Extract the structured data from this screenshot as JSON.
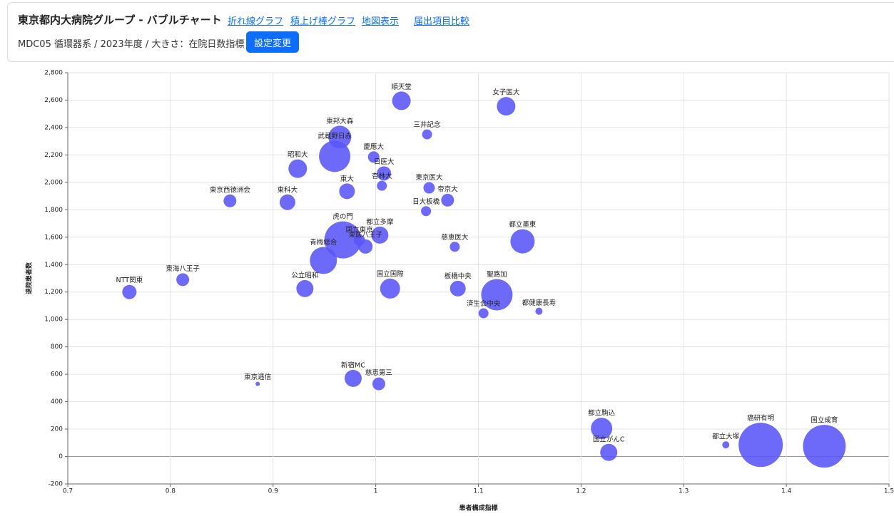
{
  "header": {
    "title": "東京都内大病院グループ - バブルチャート",
    "links": [
      "折れ線グラフ",
      "積上げ棒グラフ",
      "地図表示",
      "届出項目比較"
    ],
    "subtitle": "MDC05 循環器系 / 2023年度 / 大きさ：在院日数指標",
    "button": "設定変更"
  },
  "chart_data": {
    "type": "bubble",
    "x_label": "患者構成指標",
    "y_label": "退院患者数",
    "labels": [
      "NTT関東",
      "東海八王子",
      "東京西徳洲会",
      "東京逓信",
      "東科大",
      "昭和大",
      "公立昭和",
      "青梅総合",
      "武蔵野日赤",
      "東邦大森",
      "虎の門",
      "東大",
      "新宿MC",
      "国立東京",
      "東医八王子",
      "都立多摩",
      "慶應大",
      "日医大",
      "杏林大",
      "国立国際",
      "慈恵第三",
      "順天堂",
      "三井記念",
      "東京医大",
      "日大板橋",
      "帝京大",
      "慈恵医大",
      "板橋中央",
      "済生会中央",
      "聖路加",
      "女子医大",
      "都立墨東",
      "都健康長寿",
      "都立駒込",
      "国立がんC",
      "都立大塚",
      "癌研有明",
      "国立成育"
    ],
    "x": [
      0.76,
      0.812,
      0.858,
      0.885,
      0.914,
      0.924,
      0.931,
      0.949,
      0.96,
      0.965,
      0.968,
      0.972,
      0.978,
      0.984,
      0.99,
      1.004,
      0.998,
      1.008,
      1.006,
      1.014,
      1.003,
      1.025,
      1.05,
      1.052,
      1.049,
      1.07,
      1.077,
      1.08,
      1.105,
      1.118,
      1.127,
      1.143,
      1.159,
      1.22,
      1.227,
      1.341,
      1.375,
      1.437
    ],
    "values": [
      1200,
      1290,
      1865,
      530,
      1855,
      2100,
      1225,
      1430,
      2190,
      2330,
      1580,
      1935,
      570,
      1578,
      1532,
      1615,
      2185,
      2065,
      1975,
      1225,
      530,
      2595,
      2350,
      1960,
      1790,
      1870,
      1530,
      1225,
      1045,
      1180,
      2555,
      1570,
      1060,
      205,
      30,
      85,
      85,
      75
    ],
    "sizes": [
      0.5,
      0.45,
      0.45,
      0.15,
      0.55,
      0.65,
      0.6,
      0.95,
      1.1,
      0.8,
      1.3,
      0.55,
      0.6,
      0.4,
      0.5,
      0.6,
      0.4,
      0.5,
      0.35,
      0.7,
      0.45,
      0.65,
      0.35,
      0.4,
      0.35,
      0.45,
      0.35,
      0.55,
      0.35,
      1.1,
      0.65,
      0.85,
      0.25,
      0.75,
      0.6,
      0.25,
      1.55,
      1.5
    ],
    "color": "#5a55f8",
    "xlim": [
      0.7,
      1.5
    ],
    "xticks": [
      0.7,
      0.8,
      0.9,
      1,
      1.1,
      1.2,
      1.3,
      1.4,
      1.5
    ],
    "ylim": [
      -200,
      2800
    ],
    "yticks": [
      -200,
      0,
      200,
      400,
      600,
      800,
      {
        "value": 1000,
        "label": "1,000"
      },
      {
        "value": 1200,
        "label": "1,200"
      },
      {
        "value": 1400,
        "label": "1,400"
      },
      {
        "value": 1600,
        "label": "1,600"
      },
      {
        "value": 1800,
        "label": "1,800"
      },
      {
        "value": 2000,
        "label": "2,000"
      },
      {
        "value": 2200,
        "label": "2,200"
      },
      {
        "value": 2400,
        "label": "2,400"
      },
      {
        "value": 2600,
        "label": "2,600"
      },
      {
        "value": 2800,
        "label": "2,800"
      }
    ],
    "grid": true
  }
}
